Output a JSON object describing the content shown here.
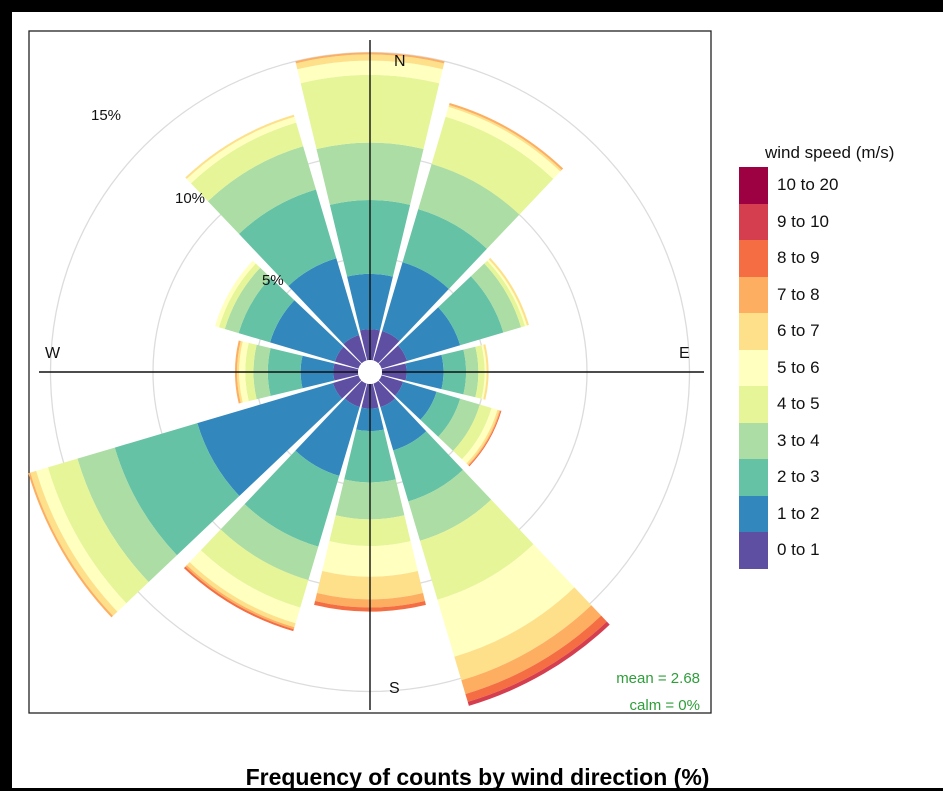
{
  "title": "Frequency of counts by wind direction (%)",
  "stats": {
    "mean": "mean = 2.68",
    "calm": "calm = 0%"
  },
  "compass": {
    "N": "N",
    "E": "E",
    "S": "S",
    "W": "W"
  },
  "rings": [
    {
      "value": 5,
      "label": "5%"
    },
    {
      "value": 10,
      "label": "10%"
    },
    {
      "value": 15,
      "label": "15%"
    }
  ],
  "legend": {
    "title": "wind speed (m/s)",
    "items": [
      {
        "label": "10 to 20",
        "color": "#9e0142"
      },
      {
        "label": "9 to 10",
        "color": "#d53e4f"
      },
      {
        "label": "8 to 9",
        "color": "#f46d43"
      },
      {
        "label": "7 to 8",
        "color": "#fdae61"
      },
      {
        "label": "6 to 7",
        "color": "#fee08b"
      },
      {
        "label": "5 to 6",
        "color": "#ffffbf"
      },
      {
        "label": "4 to 5",
        "color": "#e6f598"
      },
      {
        "label": "3 to 4",
        "color": "#abdda4"
      },
      {
        "label": "2 to 3",
        "color": "#66c2a5"
      },
      {
        "label": "1 to 2",
        "color": "#3288bd"
      },
      {
        "label": "0 to 1",
        "color": "#5e4fa2"
      }
    ]
  },
  "chart_data": {
    "type": "wind-rose",
    "title": "Frequency of counts by wind direction (%)",
    "legend_title": "wind speed (m/s)",
    "radial_unit": "%",
    "radial_max": 17,
    "grid": true,
    "legend_position": "right",
    "speed_bins": [
      "0 to 1",
      "1 to 2",
      "2 to 3",
      "3 to 4",
      "4 to 5",
      "5 to 6",
      "6 to 7",
      "7 to 8",
      "8 to 9",
      "9 to 10",
      "10 to 20"
    ],
    "bin_colors": [
      "#5e4fa2",
      "#3288bd",
      "#66c2a5",
      "#abdda4",
      "#e6f598",
      "#ffffbf",
      "#fee08b",
      "#fdae61",
      "#f46d43",
      "#d53e4f",
      "#9e0142"
    ],
    "sectors": [
      {
        "direction": 0,
        "cumulative": [
          1.5,
          4.2,
          7.8,
          10.6,
          13.9,
          14.6,
          14.9,
          15.0,
          15.0,
          15.0,
          15.0
        ]
      },
      {
        "direction": 30,
        "cumulative": [
          1.5,
          5.0,
          7.7,
          10.0,
          12.4,
          12.9,
          13.0,
          13.1,
          13.1,
          13.1,
          13.1
        ]
      },
      {
        "direction": 60,
        "cumulative": [
          1.3,
          4.0,
          6.2,
          7.1,
          7.3,
          7.4,
          7.5,
          7.5,
          7.5,
          7.5,
          7.5
        ]
      },
      {
        "direction": 90,
        "cumulative": [
          1.2,
          3.0,
          4.1,
          4.7,
          5.0,
          5.1,
          5.2,
          5.2,
          5.2,
          5.2,
          5.2
        ]
      },
      {
        "direction": 120,
        "cumulative": [
          1.1,
          2.8,
          4.0,
          5.0,
          5.6,
          5.9,
          6.0,
          6.05,
          6.1,
          6.1,
          6.1
        ]
      },
      {
        "direction": 150,
        "cumulative": [
          1.2,
          3.4,
          6.0,
          8.0,
          11.0,
          13.9,
          15.1,
          15.8,
          16.2,
          16.4,
          16.4
        ]
      },
      {
        "direction": 180,
        "cumulative": [
          1.2,
          2.3,
          4.8,
          6.6,
          7.9,
          9.4,
          10.5,
          10.9,
          11.1,
          11.1,
          11.1
        ]
      },
      {
        "direction": 210,
        "cumulative": [
          1.2,
          4.7,
          8.3,
          10.0,
          11.4,
          12.2,
          12.4,
          12.5,
          12.6,
          12.6,
          12.6
        ]
      },
      {
        "direction": 240,
        "cumulative": [
          1.3,
          8.2,
          12.4,
          14.3,
          15.8,
          16.4,
          16.7,
          16.8,
          16.8,
          16.8,
          16.8
        ]
      },
      {
        "direction": 270,
        "cumulative": [
          1.2,
          2.8,
          4.4,
          5.1,
          5.5,
          5.8,
          5.9,
          6.0,
          6.0,
          6.0,
          6.0
        ]
      },
      {
        "direction": 300,
        "cumulative": [
          1.2,
          4.5,
          6.1,
          6.8,
          7.1,
          7.3,
          7.3,
          7.3,
          7.3,
          7.3,
          7.3
        ]
      },
      {
        "direction": 330,
        "cumulative": [
          1.3,
          5.2,
          8.7,
          10.9,
          12.1,
          12.4,
          12.5,
          12.5,
          12.5,
          12.5,
          12.5
        ]
      }
    ]
  }
}
